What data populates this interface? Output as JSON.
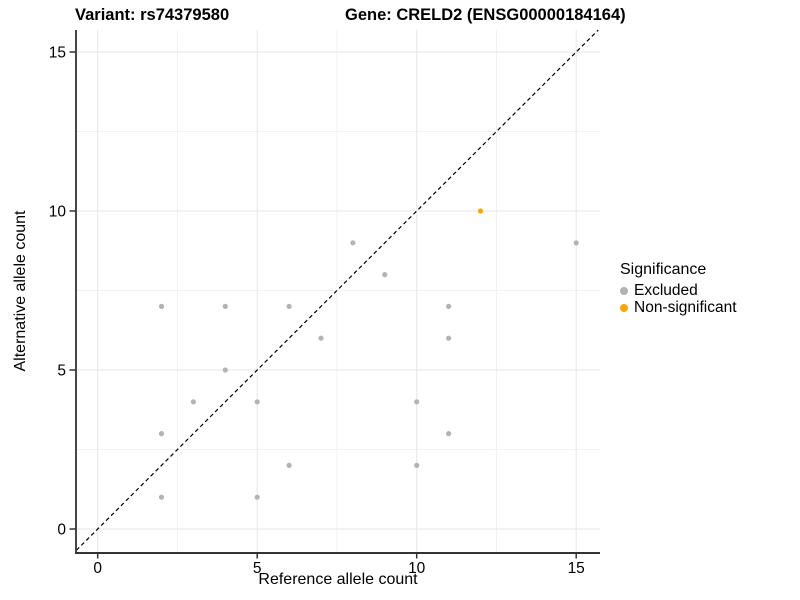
{
  "title": {
    "variant": "Variant: rs74379580",
    "gene": "Gene: CRELD2 (ENSG00000184164)"
  },
  "axes": {
    "x": {
      "label": "Reference allele count",
      "tick_labels": [
        "0",
        "5",
        "10",
        "15"
      ],
      "tick_values": [
        0,
        5,
        10,
        15
      ],
      "minor_values": [
        2.5,
        7.5,
        12.5
      ]
    },
    "y": {
      "label": "Alternative allele count",
      "tick_labels": [
        "0",
        "5",
        "10",
        "15"
      ],
      "tick_values": [
        0,
        5,
        10,
        15
      ],
      "minor_values": [
        2.5,
        7.5,
        12.5
      ]
    }
  },
  "legend": {
    "title": "Significance",
    "items": [
      {
        "label": "Excluded",
        "color": "#b3b3b3"
      },
      {
        "label": "Non-significant",
        "color": "#ffa500"
      }
    ]
  },
  "chart_data": {
    "type": "scatter",
    "title": "Variant: rs74379580 | Gene: CRELD2 (ENSG00000184164)",
    "xlabel": "Reference allele count",
    "ylabel": "Alternative allele count",
    "xlim": [
      0,
      15
    ],
    "ylim": [
      0,
      15
    ],
    "grid": "on",
    "legend_position": "right",
    "series": [
      {
        "name": "Excluded",
        "color": "#b3b3b3",
        "points": [
          [
            2,
            1
          ],
          [
            2,
            3
          ],
          [
            2,
            7
          ],
          [
            3,
            4
          ],
          [
            4,
            5
          ],
          [
            4,
            7
          ],
          [
            5,
            1
          ],
          [
            5,
            4
          ],
          [
            6,
            2
          ],
          [
            6,
            7
          ],
          [
            7,
            6
          ],
          [
            8,
            9
          ],
          [
            9,
            8
          ],
          [
            10,
            2
          ],
          [
            10,
            4
          ],
          [
            11,
            3
          ],
          [
            11,
            6
          ],
          [
            11,
            7
          ],
          [
            15,
            9
          ]
        ]
      },
      {
        "name": "Non-significant",
        "color": "#ffa500",
        "points": [
          [
            12,
            10
          ]
        ]
      }
    ],
    "reference_line": {
      "type": "identity-diagonal",
      "style": "dashed",
      "color": "#000000"
    }
  },
  "colors": {
    "major_grid": "#e6e6e6",
    "minor_grid": "#f2f2f2",
    "axis_line": "#333333",
    "tick_text": "#000000"
  }
}
